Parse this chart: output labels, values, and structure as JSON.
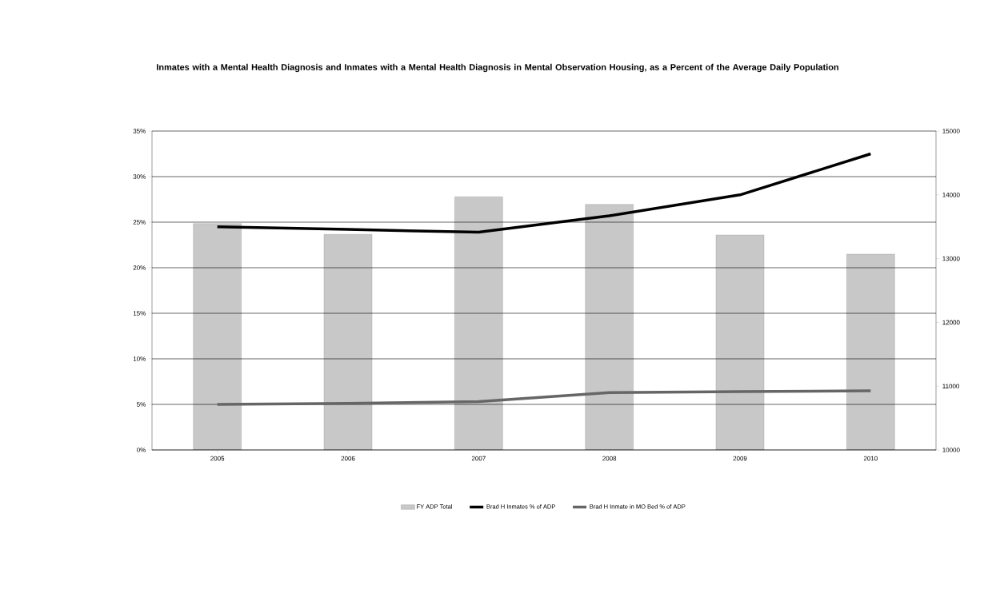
{
  "chart_data": {
    "type": "line",
    "title": "Inmates with a Mental Health Diagnosis and Inmates with a Mental Health Diagnosis in Mental Observation Housing, as a Percent of the Average Daily Population",
    "categories": [
      "2005",
      "2006",
      "2007",
      "2008",
      "2009",
      "2010"
    ],
    "series": [
      {
        "name": "FY ADP Total",
        "type": "bar",
        "axis": "y2",
        "color": "#c8c8c8",
        "values": [
          13550,
          13380,
          13970,
          13850,
          13370,
          13070
        ]
      },
      {
        "name": "Brad H Inmates % of ADP",
        "color": "#000000",
        "values": [
          24.5,
          24.2,
          23.9,
          25.7,
          28.0,
          32.5
        ]
      },
      {
        "name": "Brad H Inmate in MO Bed % of ADP",
        "color": "#666666",
        "values": [
          5.0,
          5.1,
          5.3,
          6.3,
          6.4,
          6.5
        ]
      }
    ],
    "ylim": [
      0,
      35
    ],
    "yticks": [
      {
        "value": 0,
        "label": "0%"
      },
      {
        "value": 5,
        "label": "5%"
      },
      {
        "value": 10,
        "label": "10%"
      },
      {
        "value": 15,
        "label": "15%"
      },
      {
        "value": 20,
        "label": "20%"
      },
      {
        "value": 25,
        "label": "25%"
      },
      {
        "value": 30,
        "label": "30%"
      },
      {
        "value": 35,
        "label": "35%"
      }
    ],
    "y2lim": [
      10000,
      15000
    ],
    "y2ticks": [
      10000,
      11000,
      12000,
      13000,
      14000,
      15000
    ],
    "grid": "y",
    "legend": "bottom"
  }
}
